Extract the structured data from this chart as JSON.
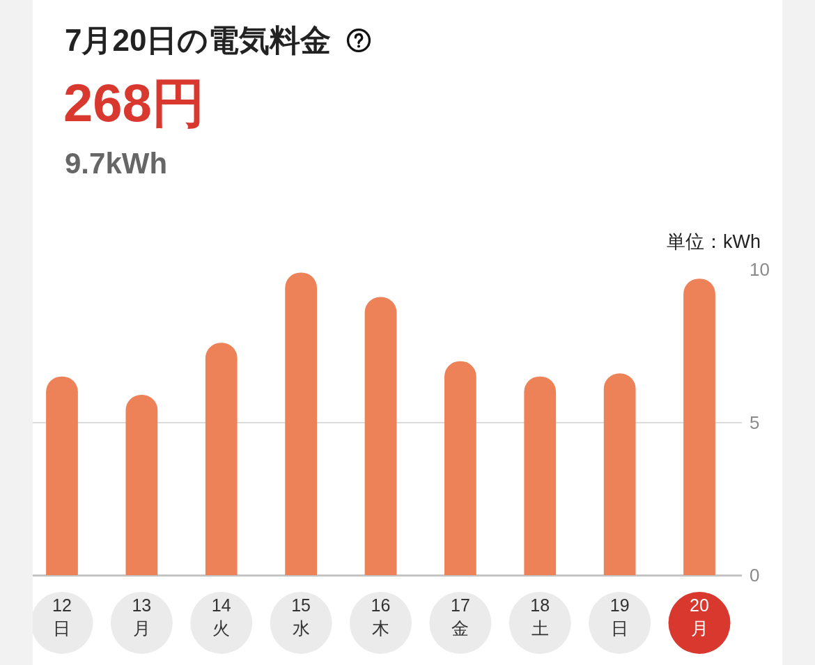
{
  "chart_data": {
    "type": "bar",
    "title": "7月20日の電気料金",
    "subtitle": "268円",
    "annotations": [
      "9.7kWh"
    ],
    "ylabel": "単位：kWh",
    "categories": [
      "12\n日",
      "13\n月",
      "14\n火",
      "15\n水",
      "16\n木",
      "17\n金",
      "18\n土",
      "19\n日",
      "20\n月"
    ],
    "values": [
      6.5,
      5.9,
      7.6,
      9.9,
      9.1,
      7.0,
      6.5,
      6.6,
      9.7
    ],
    "color": "#ed8158",
    "ylim": [
      0,
      10
    ],
    "yticks": [
      0,
      5,
      10
    ],
    "grid": "y"
  }
}
